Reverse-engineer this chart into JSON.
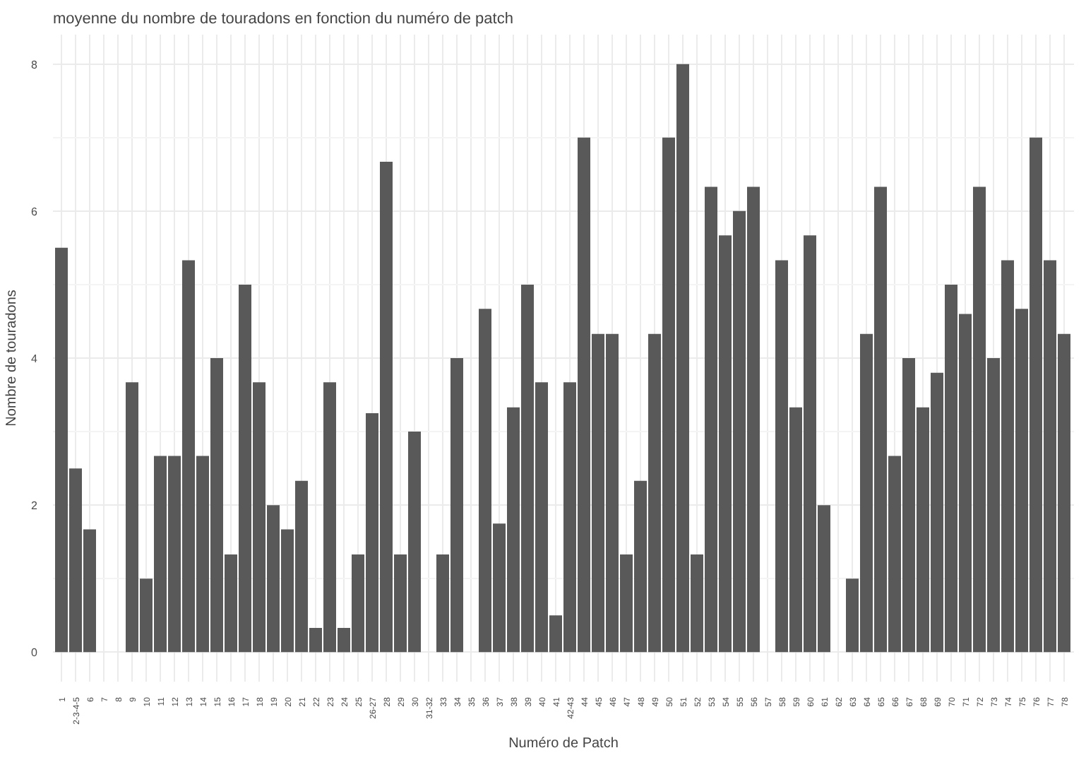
{
  "chart_data": {
    "type": "bar",
    "title": "moyenne du nombre de touradons en fonction du numéro de patch",
    "xlabel": "Numéro de Patch",
    "ylabel": "Nombre de touradons",
    "categories": [
      "1",
      "2-3-4-5",
      "6",
      "7",
      "8",
      "9",
      "10",
      "11",
      "12",
      "13",
      "14",
      "15",
      "16",
      "17",
      "18",
      "19",
      "20",
      "21",
      "22",
      "23",
      "24",
      "25",
      "26-27",
      "28",
      "29",
      "30",
      "31-32",
      "33",
      "34",
      "35",
      "36",
      "37",
      "38",
      "39",
      "40",
      "41",
      "42-43",
      "44",
      "45",
      "46",
      "47",
      "48",
      "49",
      "50",
      "51",
      "52",
      "53",
      "54",
      "55",
      "56",
      "57",
      "58",
      "59",
      "60",
      "61",
      "62",
      "63",
      "64",
      "65",
      "66",
      "67",
      "68",
      "69",
      "70",
      "71",
      "72",
      "73",
      "74",
      "75",
      "76",
      "77",
      "78"
    ],
    "values": [
      5.5,
      2.5,
      1.67,
      null,
      null,
      3.67,
      1.0,
      2.67,
      2.67,
      5.33,
      2.67,
      4.0,
      1.33,
      5.0,
      3.67,
      2.0,
      1.67,
      2.33,
      0.33,
      3.67,
      0.33,
      1.33,
      3.25,
      6.67,
      1.33,
      3.0,
      null,
      1.33,
      4.0,
      null,
      4.67,
      1.75,
      3.33,
      5.0,
      3.67,
      0.5,
      3.67,
      7.0,
      4.33,
      4.33,
      1.33,
      2.33,
      4.33,
      7.0,
      8.0,
      1.33,
      6.33,
      5.67,
      6.0,
      6.33,
      null,
      5.33,
      3.33,
      5.67,
      2.0,
      null,
      1.0,
      4.33,
      6.33,
      2.67,
      4.0,
      3.33,
      3.8,
      5.0,
      4.6,
      6.33,
      4.0,
      5.33,
      4.67,
      7.0,
      5.33,
      4.33
    ],
    "color": "#595959",
    "ylim": [
      -0.4,
      8.4
    ],
    "yticks": [
      0,
      2,
      4,
      6,
      8
    ],
    "grid": true
  }
}
